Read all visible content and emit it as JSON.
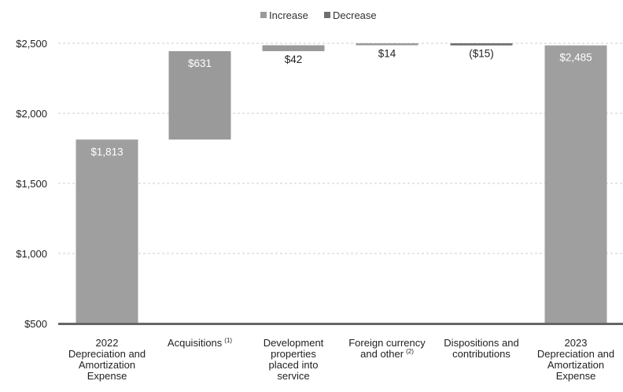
{
  "colors": {
    "increase": "#9a9a9a",
    "decrease": "#6f6f6f",
    "total": "#9f9f9f",
    "axis": "#666666",
    "grid": "#cccccc",
    "label_light": "#ffffff",
    "label_dark": "#222222"
  },
  "legend": {
    "increase": "Increase",
    "decrease": "Decrease"
  },
  "chart_data": {
    "type": "bar",
    "subtype": "waterfall",
    "title": "",
    "xlabel": "",
    "ylabel": "",
    "ylim": [
      500,
      2500
    ],
    "yticks": [
      500,
      1000,
      1500,
      2000,
      2500
    ],
    "ytick_labels": [
      "$500",
      "$1,000",
      "$1,500",
      "$2,000",
      "$2,500"
    ],
    "grid": true,
    "legend_position": "top-center",
    "categories": [
      {
        "lines": [
          "2022",
          "Depreciation and",
          "Amortization",
          "Expense"
        ],
        "sup": ""
      },
      {
        "lines": [
          "Acquisitions"
        ],
        "sup": "(1)"
      },
      {
        "lines": [
          "Development",
          "properties",
          "placed into",
          "service"
        ],
        "sup": ""
      },
      {
        "lines": [
          "Foreign currency",
          "and other"
        ],
        "sup": "(2)"
      },
      {
        "lines": [
          "Dispositions and",
          "contributions"
        ],
        "sup": ""
      },
      {
        "lines": [
          "2023",
          "Depreciation and",
          "Amortization",
          "Expense"
        ],
        "sup": ""
      }
    ],
    "bars": [
      {
        "kind": "total",
        "start": 500,
        "end": 1813,
        "label": "$1,813",
        "label_pos": "inside"
      },
      {
        "kind": "increase",
        "start": 1813,
        "end": 2444,
        "label": "$631",
        "label_pos": "inside"
      },
      {
        "kind": "increase",
        "start": 2444,
        "end": 2486,
        "label": "$42",
        "label_pos": "below"
      },
      {
        "kind": "increase",
        "start": 2486,
        "end": 2500,
        "label": "$14",
        "label_pos": "below"
      },
      {
        "kind": "decrease",
        "start": 2500,
        "end": 2485,
        "label": "($15)",
        "label_pos": "below"
      },
      {
        "kind": "total",
        "start": 500,
        "end": 2485,
        "label": "$2,485",
        "label_pos": "inside"
      }
    ]
  }
}
